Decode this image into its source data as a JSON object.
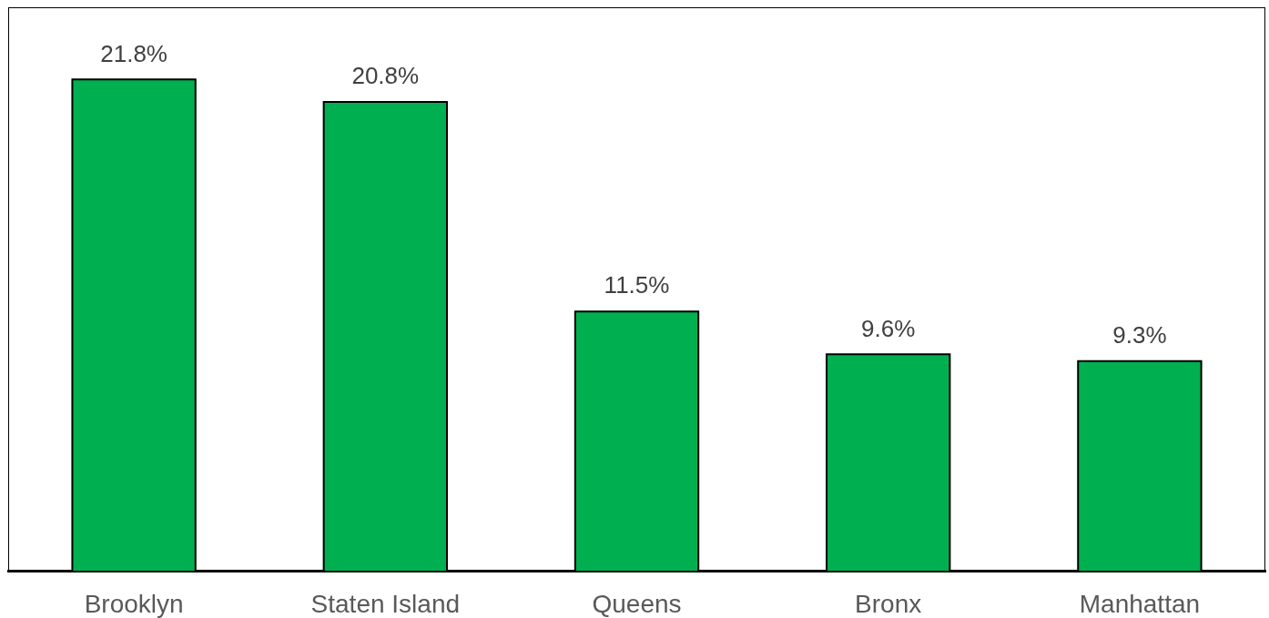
{
  "chart_data": {
    "type": "bar",
    "categories": [
      "Brooklyn",
      "Staten Island",
      "Queens",
      "Bronx",
      "Manhattan"
    ],
    "values": [
      21.8,
      20.8,
      11.5,
      9.6,
      9.3
    ],
    "color": "#00b050",
    "value_labels": [
      "21.8%",
      "20.8%",
      "11.5%",
      "9.6%",
      "9.3%"
    ],
    "tick_labels": "x"
  }
}
